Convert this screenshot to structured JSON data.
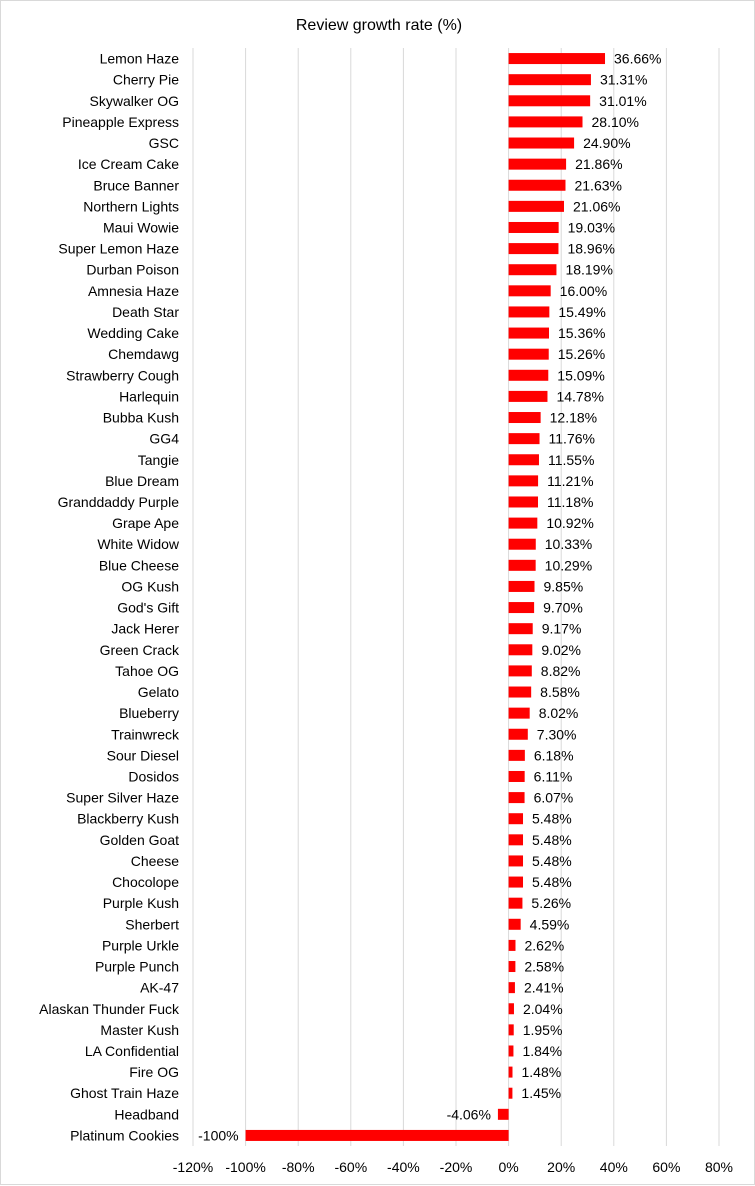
{
  "chart_data": {
    "type": "bar",
    "orientation": "horizontal",
    "title": "Review growth rate (%)",
    "xlabel": "",
    "ylabel": "",
    "xlim": [
      -120,
      80
    ],
    "x_ticks": [
      -120,
      -100,
      -80,
      -60,
      -40,
      -20,
      0,
      20,
      40,
      60,
      80
    ],
    "x_tick_labels": [
      "-120%",
      "-100%",
      "-80%",
      "-60%",
      "-40%",
      "-20%",
      "0%",
      "20%",
      "40%",
      "60%",
      "80%"
    ],
    "grid": "vertical",
    "bar_color": "#ff0000",
    "categories": [
      "Lemon Haze",
      "Cherry Pie",
      "Skywalker OG",
      "Pineapple Express",
      "GSC",
      "Ice Cream Cake",
      "Bruce Banner",
      "Northern Lights",
      "Maui Wowie",
      "Super Lemon Haze",
      "Durban Poison",
      "Amnesia Haze",
      "Death Star",
      "Wedding Cake",
      "Chemdawg",
      "Strawberry Cough",
      "Harlequin",
      "Bubba Kush",
      "GG4",
      "Tangie",
      "Blue Dream",
      "Granddaddy Purple",
      "Grape Ape",
      "White Widow",
      "Blue Cheese",
      "OG Kush",
      "God's Gift",
      "Jack Herer",
      "Green Crack",
      "Tahoe OG",
      "Gelato",
      "Blueberry",
      "Trainwreck",
      "Sour Diesel",
      "Dosidos",
      "Super Silver Haze",
      "Blackberry Kush",
      "Golden Goat",
      "Cheese",
      "Chocolope",
      "Purple Kush",
      "Sherbert",
      "Purple Urkle",
      "Purple Punch",
      "AK-47",
      "Alaskan Thunder Fuck",
      "Master Kush",
      "LA Confidential",
      "Fire OG",
      "Ghost Train Haze",
      "Headband",
      "Platinum Cookies"
    ],
    "values": [
      36.66,
      31.31,
      31.01,
      28.1,
      24.9,
      21.86,
      21.63,
      21.06,
      19.03,
      18.96,
      18.19,
      16.0,
      15.49,
      15.36,
      15.26,
      15.09,
      14.78,
      12.18,
      11.76,
      11.55,
      11.21,
      11.18,
      10.92,
      10.33,
      10.29,
      9.85,
      9.7,
      9.17,
      9.02,
      8.82,
      8.58,
      8.02,
      7.3,
      6.18,
      6.11,
      6.07,
      5.48,
      5.48,
      5.48,
      5.48,
      5.26,
      4.59,
      2.62,
      2.58,
      2.41,
      2.04,
      1.95,
      1.84,
      1.48,
      1.45,
      -4.06,
      -100
    ],
    "data_labels": [
      "36.66%",
      "31.31%",
      "31.01%",
      "28.10%",
      "24.90%",
      "21.86%",
      "21.63%",
      "21.06%",
      "19.03%",
      "18.96%",
      "18.19%",
      "16.00%",
      "15.49%",
      "15.36%",
      "15.26%",
      "15.09%",
      "14.78%",
      "12.18%",
      "11.76%",
      "11.55%",
      "11.21%",
      "11.18%",
      "10.92%",
      "10.33%",
      "10.29%",
      "9.85%",
      "9.70%",
      "9.17%",
      "9.02%",
      "8.82%",
      "8.58%",
      "8.02%",
      "7.30%",
      "6.18%",
      "6.11%",
      "6.07%",
      "5.48%",
      "5.48%",
      "5.48%",
      "5.48%",
      "5.26%",
      "4.59%",
      "2.62%",
      "2.58%",
      "2.41%",
      "2.04%",
      "1.95%",
      "1.84%",
      "1.48%",
      "1.45%",
      "-4.06%",
      "-100%"
    ]
  }
}
